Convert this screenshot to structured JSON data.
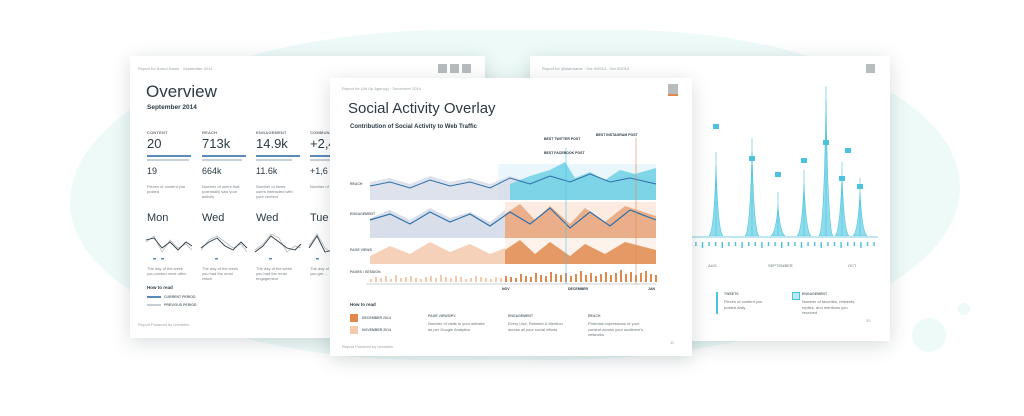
{
  "colors": {
    "background_blob": "#eefaf8",
    "accent_teal": "#4cc3dc",
    "accent_blue": "#2f6fa8",
    "accent_orange": "#e0894e",
    "grey": "#b7bcbf"
  },
  "left_card": {
    "header_text": "Report for Brand Name · September 2014",
    "title": "Overview",
    "subtitle": "September 2014",
    "metrics": [
      {
        "label": "CONTENT",
        "value": "20",
        "prev": "19",
        "desc": "Pieces of content you posted"
      },
      {
        "label": "REACH",
        "value": "713k",
        "prev": "664k",
        "desc": "Number of users that potentially saw your activity"
      },
      {
        "label": "ENGAGEMENT",
        "value": "14.9k",
        "prev": "11.6k",
        "desc": "Number of times users interacted with your content"
      },
      {
        "label": "COMMUNITY",
        "value": "+2,4",
        "prev": "+1,6",
        "desc": "Number of gen..."
      }
    ],
    "days": [
      {
        "day": "Mon",
        "desc": "The day of the week you posted most often"
      },
      {
        "day": "Wed",
        "desc": "The day of the week you had the most reach"
      },
      {
        "day": "Wed",
        "desc": "The day of the week you had the most engagement"
      },
      {
        "day": "Tue",
        "desc": "The day of the week you gre..."
      }
    ],
    "how_to_read": "How to read",
    "legend": [
      {
        "label": "CURRENT PERIOD"
      },
      {
        "label": "PREVIOUS PERIOD"
      }
    ],
    "footer": "Report Powered by Unmetric"
  },
  "center_card": {
    "header_text": "Report for (Ad Up Agency) · December 2014",
    "title": "Social Activity Overlay",
    "subtitle": "Contribution of Social Activity to Web Traffic",
    "lanes": [
      "REACH",
      "ENGAGEMENT",
      "PAGE VIEWS",
      "PAGES / SESSION"
    ],
    "annotations": [
      "BEST TWITTER POST",
      "BEST INSTAGRAM POST",
      "BEST FACEBOOK POST"
    ],
    "axis_labels": [
      "NOV",
      "DECEMBER",
      "JAN"
    ],
    "how_to_read": "How to read",
    "legend_swatches": [
      {
        "label": "DECEMBER 2014"
      },
      {
        "label": "NOVEMBER 2014"
      }
    ],
    "legend_columns": [
      {
        "title": "PAGE VIEWS/PV",
        "desc": "Number of visits to your website as per Google Analytics"
      },
      {
        "title": "ENGAGEMENT",
        "desc": "Every Like, Retweet & Mention across all your social efforts"
      },
      {
        "title": "REACH",
        "desc": "Potential impressions of your content across your audience's networks"
      }
    ],
    "footer": "Report Powered by Unmetric",
    "page": "11"
  },
  "right_card": {
    "header_text": "Report for @username · Oct 9/2014 - Oct 9/2014",
    "axis_labels": [
      "AUG",
      "SEPTEMBER",
      "OCT"
    ],
    "legend": [
      {
        "title": "TWEETS",
        "desc": "Pieces of content you posted daily"
      },
      {
        "title": "ENGAGEMENT",
        "desc": "Number of favorites, retweets, replies, and mentions you received"
      }
    ],
    "page": "39"
  }
}
